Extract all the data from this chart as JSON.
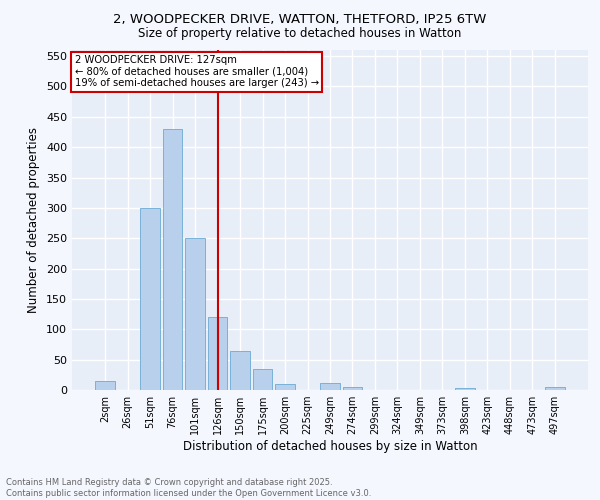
{
  "title_line1": "2, WOODPECKER DRIVE, WATTON, THETFORD, IP25 6TW",
  "title_line2": "Size of property relative to detached houses in Watton",
  "xlabel": "Distribution of detached houses by size in Watton",
  "ylabel": "Number of detached properties",
  "bar_color": "#b8d0eb",
  "bar_edgecolor": "#6aaad4",
  "background_color": "#e8eef8",
  "grid_color": "#ffffff",
  "fig_facecolor": "#f5f7ff",
  "categories": [
    "2sqm",
    "26sqm",
    "51sqm",
    "76sqm",
    "101sqm",
    "126sqm",
    "150sqm",
    "175sqm",
    "200sqm",
    "225sqm",
    "249sqm",
    "274sqm",
    "299sqm",
    "324sqm",
    "349sqm",
    "373sqm",
    "398sqm",
    "423sqm",
    "448sqm",
    "473sqm",
    "497sqm"
  ],
  "values": [
    15,
    0,
    300,
    430,
    250,
    120,
    65,
    35,
    10,
    0,
    12,
    5,
    0,
    0,
    0,
    0,
    3,
    0,
    0,
    0,
    5
  ],
  "ylim": [
    0,
    560
  ],
  "yticks": [
    0,
    50,
    100,
    150,
    200,
    250,
    300,
    350,
    400,
    450,
    500,
    550
  ],
  "vline_x": 5,
  "vline_color": "#cc0000",
  "annotation_title": "2 WOODPECKER DRIVE: 127sqm",
  "annotation_line1": "← 80% of detached houses are smaller (1,004)",
  "annotation_line2": "19% of semi-detached houses are larger (243) →",
  "annotation_box_edgecolor": "#cc0000",
  "footer_line1": "Contains HM Land Registry data © Crown copyright and database right 2025.",
  "footer_line2": "Contains public sector information licensed under the Open Government Licence v3.0."
}
